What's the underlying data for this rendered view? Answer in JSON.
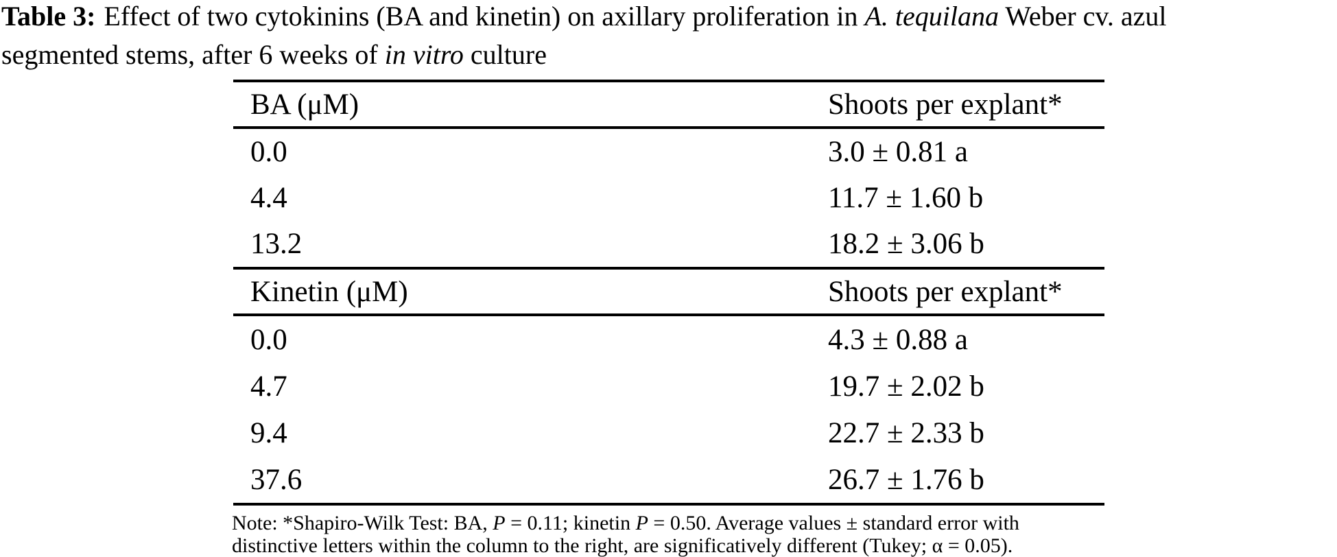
{
  "page": {
    "background": "#ffffff",
    "text_color": "#000000"
  },
  "title": {
    "line1": {
      "label": "Table 3:",
      "seg1": "Effect of two cytokinins (BA and kinetin) on axillary proliferation in ",
      "italic1": "A. tequilana",
      "seg2": " Weber cv. azul"
    },
    "line2": {
      "seg1": "segmented stems, after 6 weeks of ",
      "italic1": "in vitro",
      "seg2": " culture"
    }
  },
  "table": {
    "sections": [
      {
        "header": {
          "col1": "BA (μM)",
          "col2": "Shoots per explant*"
        },
        "rows": [
          {
            "dose": "0.0",
            "value": "3.0 ± 0.81 a"
          },
          {
            "dose": "4.4",
            "value": "11.7 ± 1.60 b"
          },
          {
            "dose": "13.2",
            "value": "18.2 ± 3.06 b"
          }
        ]
      },
      {
        "header": {
          "col1": "Kinetin (μM)",
          "col2": "Shoots per explant*"
        },
        "rows": [
          {
            "dose": "0.0",
            "value": "4.3 ± 0.88 a"
          },
          {
            "dose": "4.7",
            "value": "19.7 ± 2.02 b"
          },
          {
            "dose": "9.4",
            "value": "22.7 ± 2.33 b"
          },
          {
            "dose": "37.6",
            "value": "26.7 ± 1.76 b"
          }
        ]
      }
    ]
  },
  "note": {
    "line1": {
      "seg1": "Note: *Shapiro-Wilk Test: BA, ",
      "italic1": "P",
      "seg2": " = 0.11; kinetin ",
      "italic2": "P",
      "seg3": " = 0.50. Average values ± standard error with"
    },
    "line2": "distinctive letters within the column to the right, are significatively different (Tukey; α = 0.05)."
  }
}
